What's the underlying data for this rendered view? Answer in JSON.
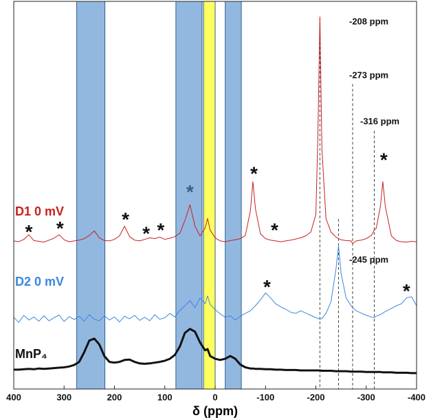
{
  "chart_data": {
    "type": "line",
    "x_label": "δ (ppm)",
    "xlim": [
      400,
      -400
    ],
    "xticks": [
      400,
      300,
      200,
      100,
      0,
      -100,
      -200,
      -300,
      -400
    ],
    "ylim": [
      0,
      100
    ],
    "x": [
      400,
      390,
      380,
      370,
      360,
      350,
      340,
      330,
      320,
      310,
      300,
      290,
      280,
      270,
      260,
      250,
      240,
      230,
      220,
      210,
      200,
      190,
      180,
      170,
      160,
      150,
      140,
      130,
      120,
      110,
      100,
      90,
      80,
      70,
      60,
      50,
      40,
      30,
      20,
      15,
      10,
      0,
      -10,
      -20,
      -30,
      -40,
      -50,
      -60,
      -70,
      -75,
      -80,
      -90,
      -100,
      -110,
      -120,
      -130,
      -140,
      -150,
      -160,
      -170,
      -180,
      -190,
      -200,
      -204,
      -208,
      -212,
      -220,
      -230,
      -240,
      -245,
      -250,
      -260,
      -270,
      -273,
      -280,
      -290,
      -300,
      -310,
      -316,
      -320,
      -328,
      -333,
      -338,
      -350,
      -360,
      -370,
      -380,
      -390,
      -400
    ],
    "series": [
      {
        "name": "D1 0 mV",
        "color": "#c81e1e",
        "values": [
          38.2,
          38.0,
          38.6,
          39.8,
          38.3,
          38.1,
          37.9,
          38.4,
          38.9,
          39.8,
          38.5,
          38.0,
          38.2,
          38.4,
          38.8,
          39.6,
          40.8,
          39.0,
          38.3,
          38.2,
          38.6,
          39.5,
          42.0,
          39.3,
          38.4,
          38.2,
          38.6,
          39.0,
          38.8,
          39.2,
          38.6,
          38.9,
          39.3,
          40.2,
          43.5,
          47.5,
          42.0,
          39.5,
          41.5,
          44.0,
          41.0,
          39.0,
          38.2,
          38.0,
          38.3,
          38.5,
          38.8,
          39.6,
          46.0,
          53.5,
          46.5,
          40.0,
          38.8,
          38.4,
          38.2,
          38.0,
          38.2,
          38.4,
          38.7,
          39.0,
          39.5,
          40.5,
          45.0,
          65.0,
          96.0,
          62.0,
          44.0,
          40.5,
          39.2,
          38.8,
          38.5,
          38.3,
          38.2,
          37.5,
          38.2,
          38.4,
          38.8,
          39.6,
          41.0,
          41.5,
          47.0,
          53.5,
          47.0,
          39.5,
          38.3,
          38.0,
          37.9,
          38.1,
          38.0
        ]
      },
      {
        "name": "D2 0 mV",
        "color": "#3a86e0",
        "values": [
          18.5,
          17.2,
          19.0,
          17.8,
          18.6,
          17.5,
          18.9,
          17.6,
          18.4,
          19.1,
          17.4,
          18.7,
          17.9,
          18.8,
          17.5,
          19.2,
          18.0,
          17.6,
          18.9,
          17.8,
          18.6,
          17.3,
          18.8,
          18.1,
          19.0,
          17.7,
          18.5,
          17.6,
          19.2,
          18.0,
          18.4,
          19.5,
          18.6,
          20.3,
          21.5,
          22.8,
          21.0,
          23.5,
          22.0,
          24.0,
          21.8,
          20.5,
          19.4,
          18.5,
          18.9,
          17.8,
          18.8,
          19.5,
          20.2,
          20.8,
          21.5,
          23.0,
          24.8,
          23.5,
          22.0,
          21.2,
          20.6,
          19.8,
          19.5,
          20.2,
          19.6,
          19.0,
          18.4,
          18.2,
          18.0,
          18.2,
          19.5,
          22.5,
          31.0,
          37.0,
          30.0,
          23.5,
          21.5,
          21.0,
          20.2,
          19.6,
          19.0,
          18.6,
          18.4,
          18.8,
          19.2,
          19.6,
          20.0,
          20.8,
          21.5,
          22.0,
          23.5,
          23.8,
          21.5
        ]
      },
      {
        "name": "MnP₄",
        "color": "#111111",
        "values": [
          5.0,
          5.0,
          5.1,
          5.2,
          5.1,
          5.3,
          5.2,
          5.3,
          5.4,
          5.5,
          5.6,
          5.8,
          6.2,
          7.0,
          9.5,
          12.5,
          13.0,
          11.5,
          8.5,
          7.0,
          6.8,
          7.0,
          7.5,
          7.6,
          7.0,
          6.6,
          6.5,
          6.6,
          6.8,
          7.0,
          7.3,
          7.8,
          8.8,
          11.0,
          14.5,
          15.5,
          14.8,
          12.0,
          10.0,
          10.3,
          8.5,
          7.8,
          7.5,
          7.8,
          8.5,
          7.8,
          6.3,
          5.6,
          5.3,
          5.3,
          5.2,
          5.2,
          5.1,
          5.1,
          5.0,
          5.0,
          4.9,
          4.9,
          4.9,
          4.8,
          4.8,
          4.8,
          4.8,
          4.8,
          4.8,
          4.7,
          4.7,
          4.7,
          4.6,
          4.6,
          4.6,
          4.6,
          4.5,
          4.5,
          4.5,
          4.5,
          4.4,
          4.4,
          4.4,
          4.4,
          4.4,
          4.3,
          4.3,
          4.3,
          4.2,
          4.2,
          4.2,
          4.1,
          4.1
        ]
      }
    ],
    "regions": [
      {
        "from": 275,
        "to": 219,
        "color": "#8db4de"
      },
      {
        "from": 78,
        "to": 26,
        "color": "#8db4de"
      },
      {
        "from": 23,
        "to": 0,
        "color": "#ffff55"
      },
      {
        "from": -20,
        "to": -52,
        "color": "#8db4de"
      }
    ],
    "annotations": [
      {
        "x": -208,
        "label": "-208 ppm"
      },
      {
        "x": -273,
        "label": "-273 ppm"
      },
      {
        "x": -316,
        "label": "-316 ppm"
      },
      {
        "x": -245,
        "label": "-245 ppm"
      }
    ],
    "peak_markers": [
      {
        "label": "*",
        "x": 370,
        "y": 41.6,
        "color": "#111111"
      },
      {
        "label": "*",
        "x": 308,
        "y": 42.5,
        "color": "#111111"
      },
      {
        "label": "*",
        "x": 178,
        "y": 44.8,
        "color": "#111111"
      },
      {
        "label": "*",
        "x": 137,
        "y": 41.2,
        "color": "#111111"
      },
      {
        "label": "*",
        "x": 108,
        "y": 42.1,
        "color": "#111111"
      },
      {
        "label": "*",
        "x": 50,
        "y": 51.9,
        "color": "#3a5f88"
      },
      {
        "label": "*",
        "x": -77,
        "y": 56.6,
        "color": "#111111"
      },
      {
        "label": "*",
        "x": -118,
        "y": 42.1,
        "color": "#111111"
      },
      {
        "label": "*",
        "x": -335,
        "y": 60.2,
        "color": "#111111"
      },
      {
        "label": "*",
        "x": -103,
        "y": 27.4,
        "color": "#111111"
      },
      {
        "label": "*",
        "x": -380,
        "y": 26.4,
        "color": "#111111"
      }
    ]
  }
}
